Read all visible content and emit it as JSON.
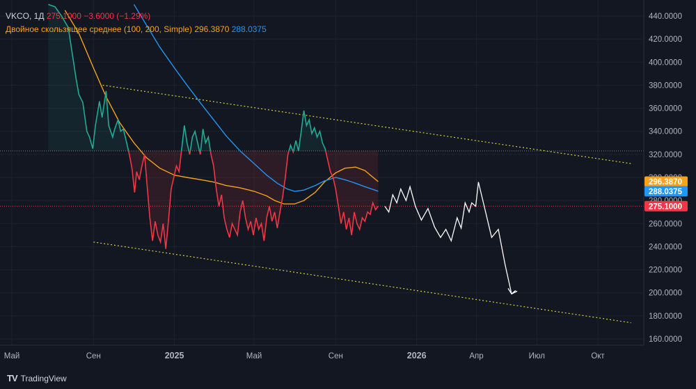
{
  "legend": {
    "symbol": "VKCO, 1Д",
    "close": "275.1000",
    "change": "−3.6000 (−1.29%)",
    "ma_label": "Двойное скользящее среднее (100, 200, Simple)",
    "ma100_value": "296.3870",
    "ma200_value": "288.0375"
  },
  "brand": {
    "name": "TradingView",
    "logo": "TV"
  },
  "colors": {
    "background": "#131722",
    "up": "#22ab94",
    "down": "#f23645",
    "ma100": "#f7a21b",
    "ma200": "#2196f3",
    "channel": "#d6d23a",
    "forecast": "#ffffff"
  },
  "chart_data": {
    "type": "line",
    "y_axis": {
      "min": 160,
      "max": 440,
      "ticks": [
        "160.0000",
        "180.0000",
        "200.0000",
        "220.0000",
        "240.0000",
        "260.0000",
        "280.0000",
        "300.0000",
        "320.0000",
        "340.0000",
        "360.0000",
        "380.0000",
        "400.0000",
        "420.0000",
        "440.0000"
      ]
    },
    "x_axis": {
      "ticks": [
        {
          "label": "Май",
          "date": "2024-05-01"
        },
        {
          "label": "Сен",
          "date": "2024-09-01"
        },
        {
          "label": "2025",
          "date": "2025-01-01"
        },
        {
          "label": "Май",
          "date": "2025-05-01"
        },
        {
          "label": "Сен",
          "date": "2025-09-01"
        },
        {
          "label": "2026",
          "date": "2026-01-01"
        },
        {
          "label": "Апр",
          "date": "2026-04-01"
        },
        {
          "label": "Июл",
          "date": "2026-07-01"
        },
        {
          "label": "Окт",
          "date": "2026-10-01"
        }
      ]
    },
    "reference_price": 323,
    "last_price": 275.1,
    "price_labels": [
      {
        "text": "296.3870",
        "value": 296.387,
        "color": "#f7a21b"
      },
      {
        "text": "288.0375",
        "value": 288.0375,
        "color": "#2196f3"
      },
      {
        "text": "275.1000",
        "value": 275.1,
        "color": "#f23645"
      }
    ],
    "series": [
      {
        "name": "VKCO",
        "points": [
          [
            "2024-06-25",
            450
          ],
          [
            "2024-07-05",
            448
          ],
          [
            "2024-07-15",
            440
          ],
          [
            "2024-07-25",
            430
          ],
          [
            "2024-08-02",
            400
          ],
          [
            "2024-08-06",
            385
          ],
          [
            "2024-08-10",
            372
          ],
          [
            "2024-08-16",
            365
          ],
          [
            "2024-08-22",
            340
          ],
          [
            "2024-08-26",
            335
          ],
          [
            "2024-08-31",
            325
          ],
          [
            "2024-09-04",
            345
          ],
          [
            "2024-09-10",
            366
          ],
          [
            "2024-09-14",
            352
          ],
          [
            "2024-09-20",
            375
          ],
          [
            "2024-09-24",
            345
          ],
          [
            "2024-09-30",
            335
          ],
          [
            "2024-10-03",
            342
          ],
          [
            "2024-10-08",
            350
          ],
          [
            "2024-10-12",
            340
          ],
          [
            "2024-10-16",
            342
          ],
          [
            "2024-10-21",
            330
          ],
          [
            "2024-10-25",
            320
          ],
          [
            "2024-10-29",
            308
          ],
          [
            "2024-11-02",
            287
          ],
          [
            "2024-11-05",
            305
          ],
          [
            "2024-11-09",
            298
          ],
          [
            "2024-11-13",
            310
          ],
          [
            "2024-11-17",
            320
          ],
          [
            "2024-11-21",
            292
          ],
          [
            "2024-11-25",
            265
          ],
          [
            "2024-11-29",
            245
          ],
          [
            "2024-12-03",
            262
          ],
          [
            "2024-12-07",
            250
          ],
          [
            "2024-12-11",
            244
          ],
          [
            "2024-12-15",
            260
          ],
          [
            "2024-12-19",
            238
          ],
          [
            "2024-12-23",
            262
          ],
          [
            "2024-12-27",
            290
          ],
          [
            "2024-12-31",
            300
          ],
          [
            "2025-01-04",
            310
          ],
          [
            "2025-01-08",
            305
          ],
          [
            "2025-01-12",
            325
          ],
          [
            "2025-01-16",
            345
          ],
          [
            "2025-01-20",
            330
          ],
          [
            "2025-01-24",
            320
          ],
          [
            "2025-01-28",
            335
          ],
          [
            "2025-02-01",
            340
          ],
          [
            "2025-02-05",
            330
          ],
          [
            "2025-02-09",
            320
          ],
          [
            "2025-02-13",
            342
          ],
          [
            "2025-02-17",
            330
          ],
          [
            "2025-02-21",
            335
          ],
          [
            "2025-02-25",
            320
          ],
          [
            "2025-03-01",
            310
          ],
          [
            "2025-03-05",
            290
          ],
          [
            "2025-03-09",
            275
          ],
          [
            "2025-03-13",
            285
          ],
          [
            "2025-03-17",
            265
          ],
          [
            "2025-03-21",
            255
          ],
          [
            "2025-03-25",
            248
          ],
          [
            "2025-03-29",
            260
          ],
          [
            "2025-04-02",
            255
          ],
          [
            "2025-04-06",
            250
          ],
          [
            "2025-04-10",
            270
          ],
          [
            "2025-04-14",
            280
          ],
          [
            "2025-04-18",
            265
          ],
          [
            "2025-04-22",
            255
          ],
          [
            "2025-04-26",
            262
          ],
          [
            "2025-04-30",
            250
          ],
          [
            "2025-05-04",
            265
          ],
          [
            "2025-05-08",
            255
          ],
          [
            "2025-05-12",
            260
          ],
          [
            "2025-05-16",
            245
          ],
          [
            "2025-05-20",
            265
          ],
          [
            "2025-05-24",
            275
          ],
          [
            "2025-05-28",
            262
          ],
          [
            "2025-06-01",
            270
          ],
          [
            "2025-06-05",
            256
          ],
          [
            "2025-06-09",
            270
          ],
          [
            "2025-06-13",
            283
          ],
          [
            "2025-06-17",
            300
          ],
          [
            "2025-06-21",
            320
          ],
          [
            "2025-06-25",
            328
          ],
          [
            "2025-06-29",
            322
          ],
          [
            "2025-07-03",
            332
          ],
          [
            "2025-07-07",
            323
          ],
          [
            "2025-07-11",
            340
          ],
          [
            "2025-07-15",
            358
          ],
          [
            "2025-07-19",
            345
          ],
          [
            "2025-07-23",
            350
          ],
          [
            "2025-07-27",
            338
          ],
          [
            "2025-07-31",
            343
          ],
          [
            "2025-08-04",
            335
          ],
          [
            "2025-08-08",
            340
          ],
          [
            "2025-08-12",
            330
          ],
          [
            "2025-08-16",
            325
          ],
          [
            "2025-08-20",
            315
          ],
          [
            "2025-08-24",
            305
          ],
          [
            "2025-08-28",
            300
          ],
          [
            "2025-09-01",
            290
          ],
          [
            "2025-09-05",
            275
          ],
          [
            "2025-09-09",
            260
          ],
          [
            "2025-09-13",
            270
          ],
          [
            "2025-09-17",
            255
          ],
          [
            "2025-09-21",
            265
          ],
          [
            "2025-09-25",
            250
          ],
          [
            "2025-09-29",
            270
          ],
          [
            "2025-10-03",
            260
          ],
          [
            "2025-10-07",
            255
          ],
          [
            "2025-10-11",
            265
          ],
          [
            "2025-10-15",
            262
          ],
          [
            "2025-10-19",
            270
          ],
          [
            "2025-10-23",
            268
          ],
          [
            "2025-10-27",
            278
          ],
          [
            "2025-10-31",
            272
          ],
          [
            "2025-11-04",
            275.1
          ]
        ]
      },
      {
        "name": "296.3870",
        "points": [
          [
            "2024-07-20",
            445
          ],
          [
            "2024-08-10",
            425
          ],
          [
            "2024-09-01",
            395
          ],
          [
            "2024-09-20",
            370
          ],
          [
            "2024-10-10",
            348
          ],
          [
            "2024-11-01",
            330
          ],
          [
            "2024-11-20",
            317
          ],
          [
            "2024-12-10",
            308
          ],
          [
            "2025-01-01",
            302
          ],
          [
            "2025-01-20",
            300
          ],
          [
            "2025-02-10",
            298
          ],
          [
            "2025-03-01",
            296
          ],
          [
            "2025-03-20",
            293
          ],
          [
            "2025-04-10",
            291
          ],
          [
            "2025-05-01",
            288
          ],
          [
            "2025-05-20",
            284
          ],
          [
            "2025-06-01",
            280
          ],
          [
            "2025-06-15",
            277
          ],
          [
            "2025-07-01",
            277
          ],
          [
            "2025-07-15",
            280
          ],
          [
            "2025-08-01",
            287
          ],
          [
            "2025-08-15",
            296
          ],
          [
            "2025-09-01",
            304
          ],
          [
            "2025-09-15",
            308
          ],
          [
            "2025-10-01",
            309
          ],
          [
            "2025-10-15",
            306
          ],
          [
            "2025-11-04",
            296.387
          ]
        ]
      },
      {
        "name": "288.0375",
        "points": [
          [
            "2024-11-01",
            450
          ],
          [
            "2024-11-20",
            432
          ],
          [
            "2024-12-10",
            413
          ],
          [
            "2025-01-01",
            395
          ],
          [
            "2025-01-20",
            380
          ],
          [
            "2025-02-10",
            364
          ],
          [
            "2025-03-01",
            350
          ],
          [
            "2025-03-20",
            336
          ],
          [
            "2025-04-10",
            323
          ],
          [
            "2025-05-01",
            312
          ],
          [
            "2025-05-20",
            302
          ],
          [
            "2025-06-05",
            295
          ],
          [
            "2025-06-20",
            290
          ],
          [
            "2025-07-01",
            288
          ],
          [
            "2025-07-15",
            289
          ],
          [
            "2025-08-01",
            293
          ],
          [
            "2025-08-15",
            297
          ],
          [
            "2025-09-01",
            300
          ],
          [
            "2025-09-15",
            298
          ],
          [
            "2025-10-01",
            295
          ],
          [
            "2025-10-15",
            292
          ],
          [
            "2025-11-04",
            288.0375
          ]
        ]
      },
      {
        "name": "forecast",
        "points": [
          [
            "2025-11-14",
            275
          ],
          [
            "2025-11-20",
            270
          ],
          [
            "2025-11-26",
            285
          ],
          [
            "2025-12-02",
            278
          ],
          [
            "2025-12-08",
            290
          ],
          [
            "2025-12-16",
            280
          ],
          [
            "2025-12-22",
            292
          ],
          [
            "2025-12-30",
            275
          ],
          [
            "2026-01-08",
            263
          ],
          [
            "2026-01-18",
            273
          ],
          [
            "2026-01-28",
            257
          ],
          [
            "2026-02-06",
            248
          ],
          [
            "2026-02-14",
            255
          ],
          [
            "2026-02-22",
            245
          ],
          [
            "2026-03-03",
            265
          ],
          [
            "2026-03-09",
            256
          ],
          [
            "2026-03-15",
            278
          ],
          [
            "2026-03-21",
            270
          ],
          [
            "2026-03-25",
            278
          ],
          [
            "2026-03-31",
            275
          ],
          [
            "2026-04-04",
            296
          ],
          [
            "2026-04-14",
            272
          ],
          [
            "2026-04-24",
            248
          ],
          [
            "2026-05-04",
            255
          ],
          [
            "2026-05-14",
            225
          ],
          [
            "2026-05-24",
            199
          ],
          [
            "2026-05-30",
            202
          ]
        ]
      },
      {
        "name": "channel-upper",
        "points": [
          [
            "2024-09-15",
            380
          ],
          [
            "2026-11-20",
            312
          ]
        ]
      },
      {
        "name": "channel-lower",
        "points": [
          [
            "2024-09-01",
            244
          ],
          [
            "2026-11-20",
            174
          ]
        ]
      }
    ]
  }
}
